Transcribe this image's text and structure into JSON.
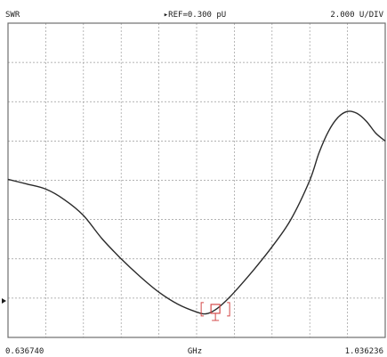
{
  "header": {
    "format": "SWR",
    "reference": "▸REF=0.300 pU",
    "scale": "2.000 U/DIV"
  },
  "footer": {
    "start": "0.636740",
    "unit": "GHz",
    "stop": "1.036236"
  },
  "colors": {
    "background": "#ffffff",
    "grid": "#9a9a9a",
    "frame": "#6e6e6e",
    "trace": "#2a2a2a",
    "marker": "#d44a4a"
  },
  "chart_data": {
    "type": "line",
    "title": "",
    "xlabel": "GHz",
    "ylabel": "SWR",
    "xlim": [
      0.63674,
      1.036236
    ],
    "ylim": [
      0,
      1
    ],
    "grid": true,
    "divisions": {
      "x": 10,
      "y": 8
    },
    "series": [
      {
        "x": [
          0.63674,
          0.6567,
          0.6767,
          0.6966,
          0.7166,
          0.7366,
          0.7566,
          0.7765,
          0.7965,
          0.8165,
          0.8364,
          0.8464,
          0.8564,
          0.8664,
          0.8764,
          0.8964,
          0.9163,
          0.9363,
          0.9563,
          0.9662,
          0.9762,
          0.9862,
          0.9962,
          1.0062,
          1.0162,
          1.0262,
          1.036236
        ],
        "y": [
          0.503,
          0.488,
          0.472,
          0.438,
          0.388,
          0.313,
          0.25,
          0.194,
          0.144,
          0.106,
          0.081,
          0.075,
          0.088,
          0.113,
          0.144,
          0.213,
          0.288,
          0.375,
          0.5,
          0.588,
          0.656,
          0.7,
          0.719,
          0.713,
          0.688,
          0.65,
          0.625
        ]
      }
    ],
    "marker": {
      "x": 0.8564,
      "y": 0.088,
      "active": true
    }
  }
}
